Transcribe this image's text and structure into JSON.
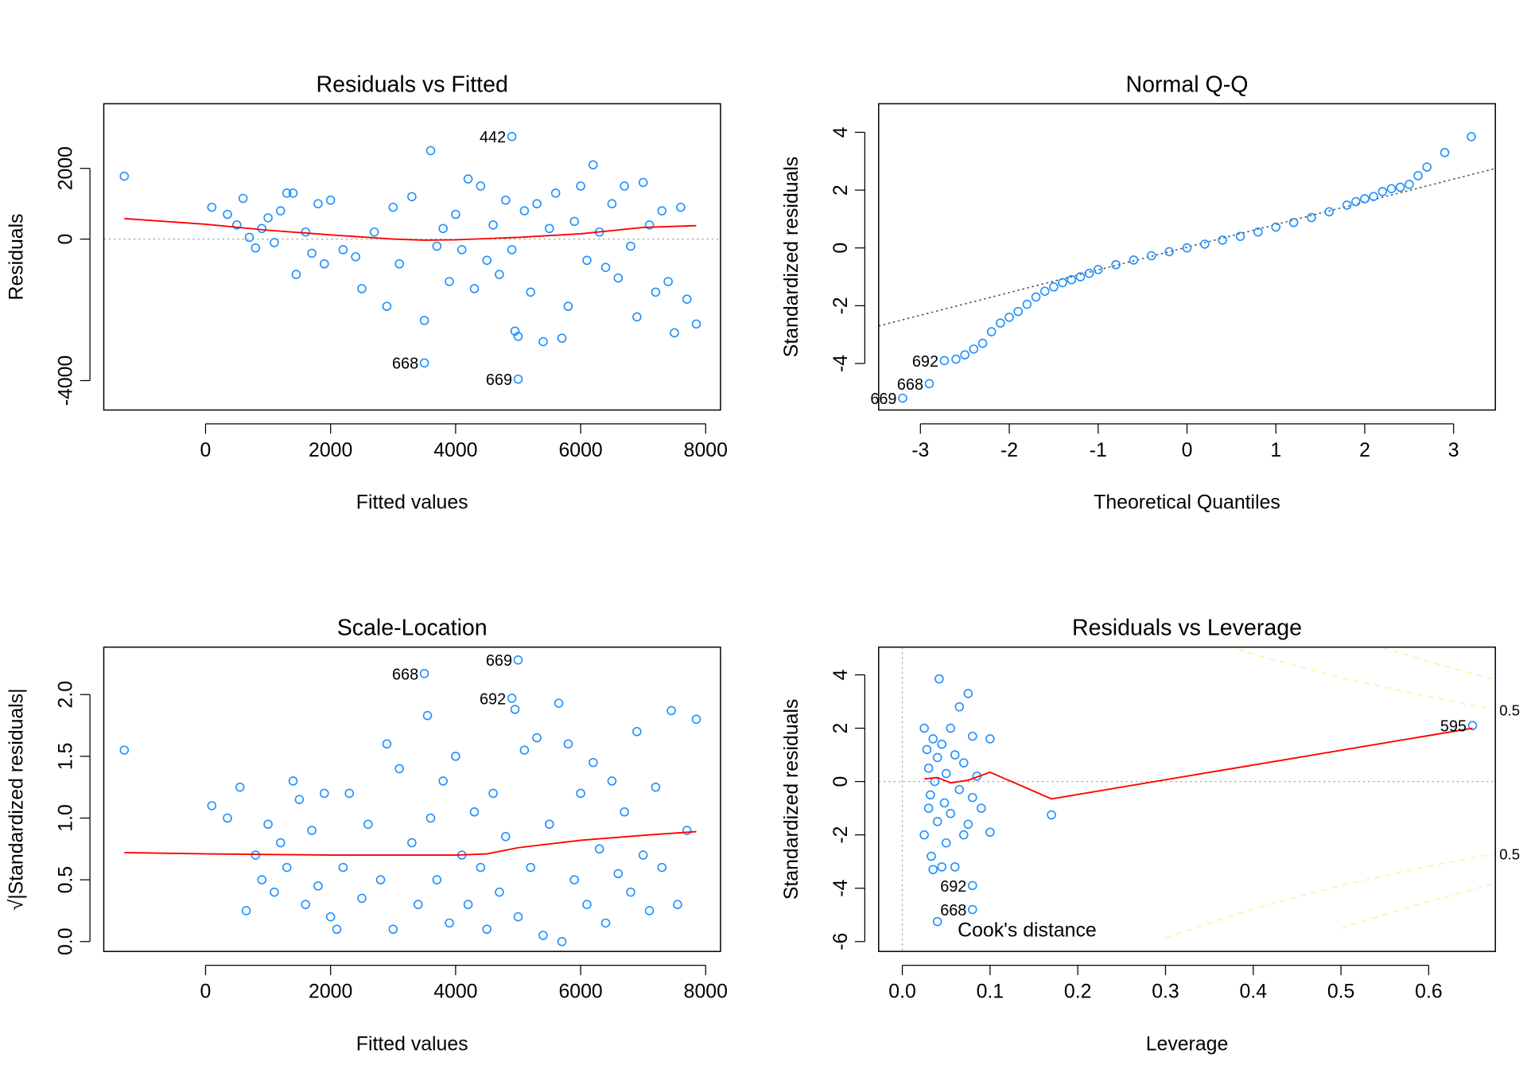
{
  "chart_data": [
    {
      "type": "scatter",
      "title": "Residuals vs Fitted",
      "xlabel": "Fitted values",
      "ylabel": "Residuals",
      "xlim": [
        -1628,
        8237
      ],
      "ylim": [
        -4832,
        3827
      ],
      "xticks": [
        0,
        2000,
        4000,
        6000,
        8000
      ],
      "yticks": [
        -4000,
        0,
        2000
      ],
      "color": "#1e90ff",
      "hline": 0,
      "x": [
        -1300,
        100,
        350,
        500,
        600,
        700,
        800,
        900,
        1000,
        1100,
        1200,
        1300,
        1400,
        1450,
        1600,
        1700,
        1800,
        1900,
        2000,
        2200,
        2400,
        2500,
        2700,
        2900,
        3000,
        3100,
        3300,
        3500,
        3600,
        3700,
        3800,
        3900,
        4000,
        4100,
        4200,
        4300,
        4400,
        4500,
        4600,
        4700,
        4800,
        4900,
        4950,
        5000,
        5100,
        5200,
        5300,
        5400,
        5500,
        5600,
        5700,
        5800,
        5900,
        6000,
        6100,
        6200,
        6300,
        6400,
        6500,
        6600,
        6700,
        6800,
        6900,
        7000,
        7100,
        7200,
        7300,
        7400,
        7500,
        7600,
        7700,
        7850
      ],
      "values": [
        1780,
        900,
        700,
        400,
        1150,
        50,
        -250,
        300,
        600,
        -100,
        800,
        1300,
        1300,
        -1000,
        200,
        -400,
        1000,
        -700,
        1100,
        -300,
        -500,
        -1400,
        200,
        -1900,
        900,
        -700,
        1200,
        -2300,
        2500,
        -200,
        300,
        -1200,
        700,
        -300,
        1700,
        -1400,
        1500,
        -600,
        400,
        -1000,
        1100,
        -300,
        -2600,
        -2750,
        800,
        -1500,
        1000,
        -2900,
        300,
        1300,
        -2800,
        -1900,
        500,
        1500,
        -600,
        2100,
        200,
        -800,
        1000,
        -1100,
        1500,
        -200,
        -2200,
        1600,
        400,
        -1500,
        800,
        -1200,
        -2650,
        900,
        -1700,
        -2400
      ],
      "smooth": {
        "color": "#ff0000",
        "x": [
          -1300,
          0,
          1000,
          2000,
          3000,
          3500,
          4000,
          5000,
          6000,
          7000,
          7850
        ],
        "values": [
          580,
          420,
          250,
          120,
          0,
          -30,
          -20,
          50,
          150,
          330,
          380
        ]
      },
      "labeled_points": [
        {
          "label": "442",
          "x": 4900,
          "y": 2900
        },
        {
          "label": "668",
          "x": 3500,
          "y": -3500
        },
        {
          "label": "669",
          "x": 5000,
          "y": -3960
        }
      ]
    },
    {
      "type": "scatter",
      "title": "Normal Q-Q",
      "xlabel": "Theoretical Quantiles",
      "ylabel": "Standardized residuals",
      "xlim": [
        -3.47,
        3.47
      ],
      "ylim": [
        -5.61,
        4.99
      ],
      "xticks": [
        -3,
        -2,
        -1,
        0,
        1,
        2,
        3
      ],
      "yticks": [
        -4,
        -2,
        0,
        2,
        4
      ],
      "color": "#1e90ff",
      "x": [
        -2.6,
        -2.5,
        -2.4,
        -2.3,
        -2.2,
        -2.1,
        -2.0,
        -1.9,
        -1.8,
        -1.7,
        -1.6,
        -1.5,
        -1.4,
        -1.3,
        -1.2,
        -1.1,
        -1.0,
        -0.8,
        -0.6,
        -0.4,
        -0.2,
        0,
        0.2,
        0.4,
        0.6,
        0.8,
        1.0,
        1.2,
        1.4,
        1.6,
        1.8,
        1.9,
        2.0,
        2.1,
        2.2,
        2.3,
        2.4,
        2.5,
        2.6,
        2.7,
        2.9,
        3.2
      ],
      "values": [
        -3.85,
        -3.7,
        -3.5,
        -3.3,
        -2.9,
        -2.6,
        -2.4,
        -2.2,
        -1.95,
        -1.7,
        -1.5,
        -1.35,
        -1.2,
        -1.1,
        -1.0,
        -0.88,
        -0.75,
        -0.58,
        -0.42,
        -0.27,
        -0.13,
        0,
        0.13,
        0.27,
        0.4,
        0.55,
        0.72,
        0.88,
        1.05,
        1.25,
        1.48,
        1.6,
        1.7,
        1.78,
        1.95,
        2.05,
        2.1,
        2.2,
        2.5,
        2.8,
        3.3,
        3.85
      ],
      "ref_line": {
        "color": "#555555",
        "x": [
          -3.47,
          3.47
        ],
        "values": [
          -2.7,
          2.75
        ]
      },
      "labeled_points": [
        {
          "label": "692",
          "x": -2.73,
          "y": -3.9
        },
        {
          "label": "668",
          "x": -2.9,
          "y": -4.7
        },
        {
          "label": "669",
          "x": -3.2,
          "y": -5.2
        }
      ]
    },
    {
      "type": "scatter",
      "title": "Scale-Location",
      "xlabel": "Fitted values",
      "ylabel": "√|Standardized residuals|",
      "xlim": [
        -1628,
        8237
      ],
      "ylim": [
        -0.08,
        2.384
      ],
      "xticks": [
        0,
        2000,
        4000,
        6000,
        8000
      ],
      "yticks": [
        {
          "value": 0,
          "label": "0.0"
        },
        0.5,
        {
          "value": 1,
          "label": "1.0"
        },
        1.5,
        {
          "value": 2,
          "label": "2.0"
        }
      ],
      "color": "#1e90ff",
      "x": [
        -1300,
        100,
        350,
        550,
        650,
        800,
        900,
        1000,
        1100,
        1200,
        1300,
        1400,
        1500,
        1600,
        1700,
        1800,
        1900,
        2000,
        2100,
        2200,
        2300,
        2500,
        2600,
        2800,
        2900,
        3000,
        3100,
        3300,
        3400,
        3550,
        3600,
        3700,
        3800,
        3900,
        4000,
        4100,
        4200,
        4300,
        4400,
        4500,
        4600,
        4700,
        4800,
        4950,
        5000,
        5100,
        5200,
        5300,
        5400,
        5500,
        5650,
        5700,
        5800,
        5900,
        6000,
        6100,
        6200,
        6300,
        6400,
        6500,
        6600,
        6700,
        6800,
        6900,
        7000,
        7100,
        7200,
        7300,
        7450,
        7550,
        7700,
        7850
      ],
      "values": [
        1.55,
        1.1,
        1.0,
        1.25,
        0.25,
        0.7,
        0.5,
        0.95,
        0.4,
        0.8,
        0.6,
        1.3,
        1.15,
        0.3,
        0.9,
        0.45,
        1.2,
        0.2,
        0.1,
        0.6,
        1.2,
        0.35,
        0.95,
        0.5,
        1.6,
        0.1,
        1.4,
        0.8,
        0.3,
        1.83,
        1.0,
        0.5,
        1.3,
        0.15,
        1.5,
        0.7,
        0.3,
        1.05,
        0.6,
        0.1,
        1.2,
        0.4,
        0.85,
        1.88,
        0.2,
        1.55,
        0.6,
        1.65,
        0.05,
        0.95,
        1.93,
        0.0,
        1.6,
        0.5,
        1.2,
        0.3,
        1.45,
        0.75,
        0.15,
        1.3,
        0.55,
        1.05,
        0.4,
        1.7,
        0.7,
        0.25,
        1.25,
        0.6,
        1.87,
        0.3,
        0.9,
        1.8
      ],
      "smooth": {
        "color": "#ff0000",
        "x": [
          -1300,
          0,
          2000,
          3000,
          4000,
          4500,
          5000,
          6000,
          7000,
          7850
        ],
        "values": [
          0.72,
          0.71,
          0.7,
          0.7,
          0.7,
          0.71,
          0.76,
          0.82,
          0.86,
          0.89
        ]
      },
      "labeled_points": [
        {
          "label": "668",
          "x": 3500,
          "y": 2.17
        },
        {
          "label": "669",
          "x": 5000,
          "y": 2.28
        },
        {
          "label": "692",
          "x": 4900,
          "y": 1.97
        }
      ]
    },
    {
      "type": "scatter",
      "title": "Residuals vs Leverage",
      "xlabel": "Leverage",
      "ylabel": "Standardized residuals",
      "xlim": [
        -0.027,
        0.676
      ],
      "ylim": [
        -6.37,
        5.04
      ],
      "xticks": [
        {
          "value": 0,
          "label": "0.0"
        },
        0.1,
        0.2,
        0.3,
        0.4,
        0.5,
        0.6
      ],
      "yticks": [
        -6,
        -4,
        -2,
        0,
        2,
        4
      ],
      "color": "#1e90ff",
      "hline": 0,
      "vline": 0,
      "legend_text": "Cook's distance",
      "x": [
        0.025,
        0.025,
        0.028,
        0.03,
        0.03,
        0.032,
        0.033,
        0.035,
        0.035,
        0.037,
        0.04,
        0.04,
        0.042,
        0.045,
        0.045,
        0.048,
        0.05,
        0.05,
        0.055,
        0.055,
        0.06,
        0.06,
        0.065,
        0.065,
        0.07,
        0.07,
        0.075,
        0.075,
        0.08,
        0.08,
        0.085,
        0.09,
        0.1,
        0.1,
        0.17,
        0.04
      ],
      "values": [
        2.0,
        -2.0,
        1.2,
        -1.0,
        0.5,
        -0.5,
        -2.8,
        1.6,
        -3.3,
        0.0,
        -1.5,
        0.9,
        3.85,
        -3.2,
        1.4,
        -0.8,
        0.3,
        -2.3,
        2.0,
        -1.2,
        1.0,
        -3.2,
        2.8,
        -0.3,
        -2.0,
        0.7,
        3.3,
        -1.6,
        1.7,
        -0.6,
        0.2,
        -1.0,
        1.6,
        -1.9,
        -1.25,
        -5.25
      ],
      "smooth": {
        "color": "#ff0000",
        "x": [
          0.025,
          0.04,
          0.055,
          0.075,
          0.1,
          0.17,
          0.65
        ],
        "values": [
          0.1,
          0.15,
          -0.05,
          0.05,
          0.35,
          -0.65,
          2.0
        ]
      },
      "contours": [
        {
          "color": "#f5f5a0",
          "label": "0.5",
          "x": [
            0.3,
            0.35,
            0.4,
            0.5,
            0.6,
            0.676
          ],
          "values": [
            5.85,
            5.31,
            4.77,
            3.9,
            3.18,
            2.7
          ]
        },
        {
          "color": "#f5f5a0",
          "label": "0.5",
          "x": [
            0.3,
            0.35,
            0.4,
            0.5,
            0.6,
            0.676
          ],
          "values": [
            -5.85,
            -5.31,
            -4.77,
            -3.9,
            -3.18,
            -2.7
          ]
        },
        {
          "color": "#f5f5a0",
          "x": [
            0.5,
            0.55,
            0.6,
            0.676
          ],
          "values": [
            5.51,
            4.99,
            4.5,
            3.82
          ]
        },
        {
          "color": "#f5f5a0",
          "x": [
            0.5,
            0.55,
            0.6,
            0.676
          ],
          "values": [
            -5.51,
            -4.99,
            -4.5,
            -3.82
          ]
        }
      ],
      "labeled_points": [
        {
          "label": "595",
          "x": 0.65,
          "y": 2.1
        },
        {
          "label": "692",
          "x": 0.08,
          "y": -3.9
        },
        {
          "label": "668",
          "x": 0.08,
          "y": -4.8
        }
      ]
    }
  ]
}
